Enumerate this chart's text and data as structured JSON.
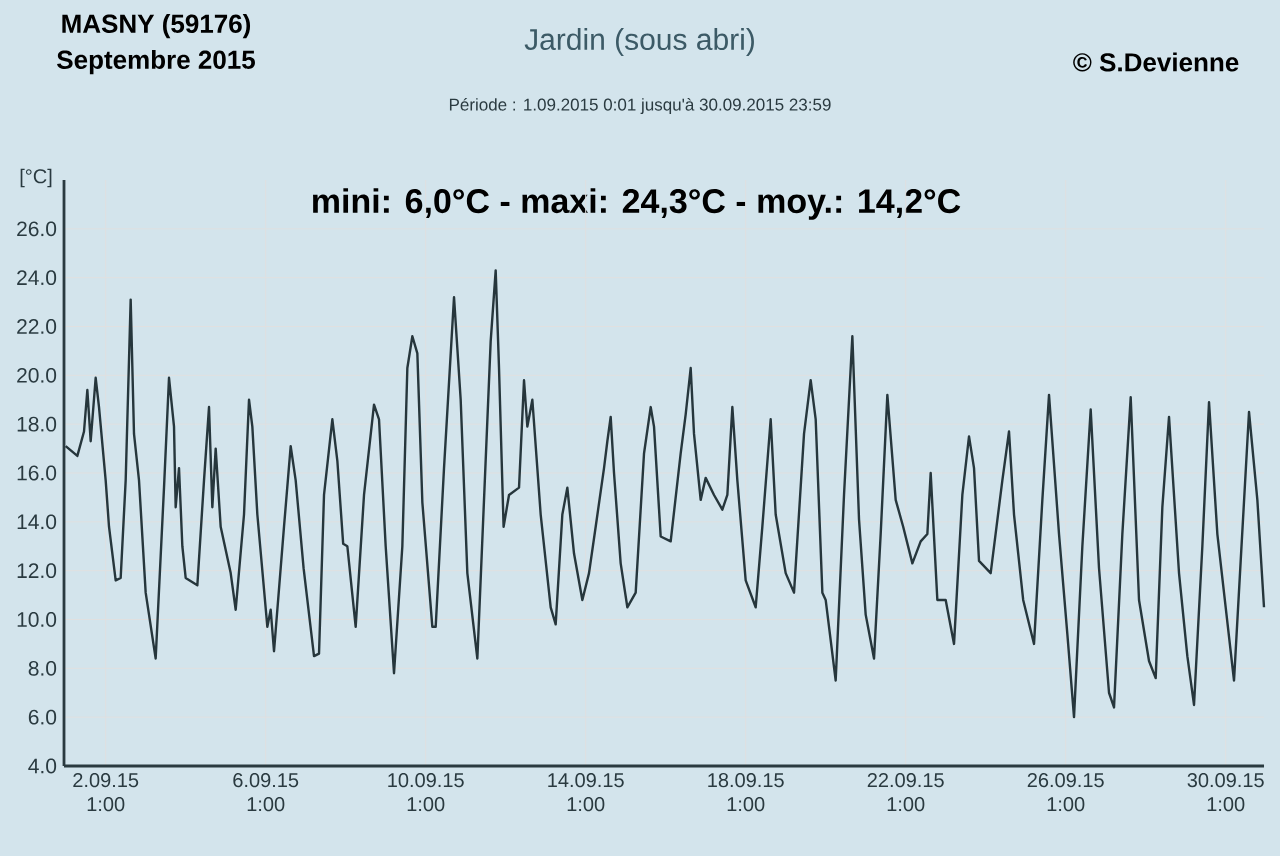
{
  "chart_data": {
    "type": "line",
    "title": "Jardin (sous abri)",
    "subtitle": "Période :  1.09.2015   0:01   jusqu'à  30.09.2015   23:59",
    "ylabel": "[°C]",
    "annotations": [
      "MASNY (59176)",
      "Septembre  2015",
      "© S.Devienne",
      "mini:  6,0°C - maxi: 24,3°C - moy.: 14,2°C"
    ],
    "color": "#26363c",
    "x": [
      "2015-09-01T01:00",
      "2015-09-01T08:00",
      "2015-09-01T12:00",
      "2015-09-01T14:00",
      "2015-09-01T16:00",
      "2015-09-01T19:00",
      "2015-09-01T21:00",
      "2015-09-02T01:00",
      "2015-09-02T03:00",
      "2015-09-02T07:00",
      "2015-09-02T10:00",
      "2015-09-02T13:00",
      "2015-09-02T16:00",
      "2015-09-02T18:00",
      "2015-09-02T21:00",
      "2015-09-03T01:00",
      "2015-09-03T07:00",
      "2015-09-03T12:00",
      "2015-09-03T15:00",
      "2015-09-03T18:00",
      "2015-09-03T19:00",
      "2015-09-03T21:00",
      "2015-09-03T23:00",
      "2015-09-04T01:00",
      "2015-09-04T08:00",
      "2015-09-04T12:00",
      "2015-09-04T15:00",
      "2015-09-04T17:00",
      "2015-09-04T19:00",
      "2015-09-04T22:00",
      "2015-09-05T04:00",
      "2015-09-05T07:00",
      "2015-09-05T12:00",
      "2015-09-05T15:00",
      "2015-09-05T17:00",
      "2015-09-05T20:00",
      "2015-09-06T02:00",
      "2015-09-06T04:00",
      "2015-09-06T06:00",
      "2015-09-06T12:00",
      "2015-09-06T16:00",
      "2015-09-06T19:00",
      "2015-09-06T23:45",
      "2015-09-07T06:00",
      "2015-09-07T09:00",
      "2015-09-07T12:00",
      "2015-09-07T17:00",
      "2015-09-07T20:00",
      "2015-09-07T23:30",
      "2015-09-08T02:00",
      "2015-09-08T07:00",
      "2015-09-08T12:00",
      "2015-09-08T18:00",
      "2015-09-08T21:00",
      "2015-09-09T01:00",
      "2015-09-09T06:00",
      "2015-09-09T11:00",
      "2015-09-09T14:00",
      "2015-09-09T17:00",
      "2015-09-09T20:00",
      "2015-09-09T23:00",
      "2015-09-10T05:00",
      "2015-09-10T07:00",
      "2015-09-10T12:00",
      "2015-09-10T18:00",
      "2015-09-10T22:00",
      "2015-09-11T02:00",
      "2015-09-11T08:00",
      "2015-09-11T12:00",
      "2015-09-11T16:00",
      "2015-09-11T19:00",
      "2015-09-11T21:00",
      "2015-09-11T23:45",
      "2015-09-12T03:00",
      "2015-09-12T09:00",
      "2015-09-12T12:00",
      "2015-09-12T14:00",
      "2015-09-12T17:00",
      "2015-09-12T22:00",
      "2015-09-13T04:00",
      "2015-09-13T07:00",
      "2015-09-13T11:00",
      "2015-09-13T14:00",
      "2015-09-13T18:00",
      "2015-09-13T23:00",
      "2015-09-14T03:00",
      "2015-09-14T07:00",
      "2015-09-14T12:00",
      "2015-09-14T14:00",
      "2015-09-14T16:00",
      "2015-09-14T18:00",
      "2015-09-14T22:00",
      "2015-09-15T02:00",
      "2015-09-15T07:00",
      "2015-09-15T12:00",
      "2015-09-15T16:00",
      "2015-09-15T18:00",
      "2015-09-15T22:00",
      "2015-09-16T04:00",
      "2015-09-16T10:00",
      "2015-09-16T13:00",
      "2015-09-16T16:00",
      "2015-09-16T18:00",
      "2015-09-16T22:00",
      "2015-09-17T01:00",
      "2015-09-17T06:00",
      "2015-09-17T11:00",
      "2015-09-17T14:00",
      "2015-09-17T17:00",
      "2015-09-17T20:00",
      "2015-09-18T01:00",
      "2015-09-18T07:00",
      "2015-09-18T11:00",
      "2015-09-18T16:00",
      "2015-09-18T19:00",
      "2015-09-19T01:00",
      "2015-09-19T06:00",
      "2015-09-19T12:00",
      "2015-09-19T16:00",
      "2015-09-19T19:00",
      "2015-09-19T23:00",
      "2015-09-20T01:00",
      "2015-09-20T07:00",
      "2015-09-20T12:00",
      "2015-09-20T17:00",
      "2015-09-20T21:00",
      "2015-09-21T01:00",
      "2015-09-21T06:00",
      "2015-09-21T10:00",
      "2015-09-21T14:00",
      "2015-09-21T19:00",
      "2015-09-21T23:30",
      "2015-09-22T05:00",
      "2015-09-22T10:00",
      "2015-09-22T14:00",
      "2015-09-22T16:00",
      "2015-09-22T20:00",
      "2015-09-23T01:00",
      "2015-09-23T06:00",
      "2015-09-23T11:00",
      "2015-09-23T15:00",
      "2015-09-23T18:00",
      "2015-09-23T21:00",
      "2015-09-24T04:00",
      "2015-09-24T11:00",
      "2015-09-24T15:00",
      "2015-09-24T18:00",
      "2015-09-24T23:30",
      "2015-09-25T06:00",
      "2015-09-25T11:00",
      "2015-09-25T15:00",
      "2015-09-25T21:00",
      "2015-09-26T02:00",
      "2015-09-26T06:00",
      "2015-09-26T11:00",
      "2015-09-26T16:00",
      "2015-09-26T21:00",
      "2015-09-27T03:00",
      "2015-09-27T06:00",
      "2015-09-27T11:00",
      "2015-09-27T16:00",
      "2015-09-27T21:00",
      "2015-09-28T03:00",
      "2015-09-28T07:00",
      "2015-09-28T11:00",
      "2015-09-28T15:00",
      "2015-09-28T21:00",
      "2015-09-29T02:00",
      "2015-09-29T06:00",
      "2015-09-29T11:00",
      "2015-09-29T15:00",
      "2015-09-29T20:00",
      "2015-09-30T06:00",
      "2015-09-30T10:00",
      "2015-09-30T15:00",
      "2015-09-30T20:00",
      "2015-09-30T23:59"
    ],
    "values": [
      17.1,
      16.7,
      17.7,
      19.4,
      17.3,
      19.9,
      18.7,
      15.7,
      13.8,
      11.6,
      11.7,
      15.7,
      23.1,
      17.6,
      15.7,
      11.1,
      8.4,
      15.4,
      19.9,
      17.9,
      14.6,
      16.2,
      13.0,
      11.7,
      11.4,
      15.7,
      18.7,
      14.6,
      17.0,
      13.8,
      11.9,
      10.4,
      14.3,
      19.0,
      17.9,
      14.3,
      9.7,
      10.4,
      8.7,
      13.8,
      17.1,
      15.7,
      12.1,
      8.5,
      8.6,
      15.1,
      18.2,
      16.5,
      13.1,
      13.0,
      9.7,
      15.1,
      18.8,
      18.2,
      13.0,
      7.8,
      13.0,
      20.3,
      21.6,
      20.9,
      14.8,
      9.7,
      9.7,
      16.2,
      23.2,
      19.0,
      11.9,
      8.4,
      14.9,
      21.4,
      24.3,
      20.3,
      13.8,
      15.1,
      15.4,
      19.8,
      17.9,
      19.0,
      14.3,
      10.5,
      9.8,
      14.3,
      15.4,
      12.7,
      10.8,
      11.9,
      13.8,
      16.2,
      17.3,
      18.3,
      16.0,
      12.3,
      10.5,
      11.1,
      16.8,
      18.7,
      17.9,
      13.4,
      13.2,
      16.8,
      18.4,
      20.3,
      17.6,
      14.9,
      15.8,
      15.1,
      14.5,
      15.1,
      18.7,
      15.7,
      11.6,
      10.5,
      13.8,
      18.2,
      14.3,
      11.9,
      11.1,
      17.6,
      19.8,
      18.2,
      11.1,
      10.8,
      7.5,
      15.1,
      21.6,
      14.1,
      10.2,
      8.4,
      13.5,
      19.2,
      14.9,
      13.8,
      12.3,
      13.2,
      13.5,
      16.0,
      10.8,
      10.8,
      9.0,
      15.1,
      17.5,
      16.2,
      12.4,
      11.9,
      15.7,
      17.7,
      14.3,
      10.8,
      9.0,
      14.9,
      19.2,
      13.5,
      9.4,
      6.0,
      13.0,
      18.6,
      12.1,
      7.0,
      6.4,
      13.5,
      19.1,
      10.8,
      8.3,
      7.6,
      14.6,
      18.3,
      11.9,
      8.5,
      6.5,
      13.0,
      18.9,
      13.5,
      7.5,
      12.4,
      18.5,
      14.9,
      10.5
    ],
    "xlim": [
      "2015-09-01T00:00",
      "2015-10-01T00:00"
    ],
    "ylim": [
      4,
      28
    ],
    "xticks": [
      {
        "value": "2015-09-02T01:00",
        "label": "2.09.15 1:00"
      },
      {
        "value": "2015-09-06T01:00",
        "label": "6.09.15 1:00"
      },
      {
        "value": "2015-09-10T01:00",
        "label": "10.09.15 1:00"
      },
      {
        "value": "2015-09-14T01:00",
        "label": "14.09.15 1:00"
      },
      {
        "value": "2015-09-18T01:00",
        "label": "18.09.15 1:00"
      },
      {
        "value": "2015-09-22T01:00",
        "label": "22.09.15 1:00"
      },
      {
        "value": "2015-09-26T01:00",
        "label": "26.09.15 1:00"
      },
      {
        "value": "2015-09-30T01:00",
        "label": "30.09.15 1:00"
      }
    ],
    "yticks": [
      {
        "value": 4,
        "label": "4.0"
      },
      {
        "value": 6,
        "label": "6.0"
      },
      {
        "value": 8,
        "label": "8.0"
      },
      {
        "value": 10,
        "label": "10.0"
      },
      {
        "value": 12,
        "label": "12.0"
      },
      {
        "value": 14,
        "label": "14.0"
      },
      {
        "value": 16,
        "label": "16.0"
      },
      {
        "value": 18,
        "label": "18.0"
      },
      {
        "value": 20,
        "label": "20.0"
      },
      {
        "value": 22,
        "label": "22.0"
      },
      {
        "value": 24,
        "label": "24.0"
      },
      {
        "value": 26,
        "label": "26.0"
      }
    ],
    "grid": true
  }
}
